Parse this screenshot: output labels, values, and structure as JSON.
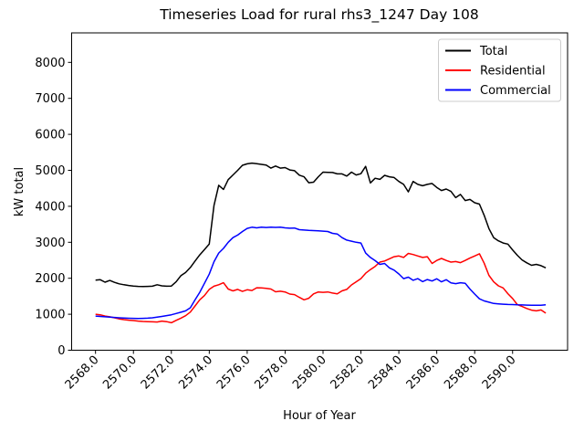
{
  "chart_data": {
    "type": "line",
    "title": "Timeseries Load for rural rhs3_1247  Day 108",
    "xlabel": "Hour of Year",
    "ylabel": "kW total",
    "grid": false,
    "legend_position": "upper right",
    "x_start": 2568.0,
    "x_step": 0.25,
    "n_points": 96,
    "xlim": [
      2566.74,
      2592.9
    ],
    "ylim": [
      0,
      8820
    ],
    "xticks": [
      2568,
      2570,
      2572,
      2574,
      2576,
      2578,
      2580,
      2582,
      2584,
      2586,
      2588,
      2590
    ],
    "xtick_labels": [
      "2568.0",
      "2570.0",
      "2572.0",
      "2574.0",
      "2576.0",
      "2578.0",
      "2580.0",
      "2582.0",
      "2584.0",
      "2586.0",
      "2588.0",
      "2590.0"
    ],
    "yticks": [
      0,
      1000,
      2000,
      3000,
      4000,
      5000,
      6000,
      7000,
      8000
    ],
    "series": [
      {
        "name": "Total",
        "color": "#000000",
        "values": [
          1950,
          1960,
          1890,
          1940,
          1885,
          1845,
          1820,
          1800,
          1785,
          1775,
          1770,
          1775,
          1780,
          1820,
          1790,
          1780,
          1785,
          1900,
          2070,
          2160,
          2300,
          2480,
          2650,
          2800,
          2950,
          4020,
          4585,
          4470,
          4740,
          4870,
          5000,
          5140,
          5180,
          5200,
          5185,
          5165,
          5145,
          5060,
          5120,
          5060,
          5075,
          5010,
          4990,
          4865,
          4820,
          4655,
          4670,
          4820,
          4950,
          4945,
          4940,
          4900,
          4900,
          4840,
          4950,
          4870,
          4905,
          5110,
          4650,
          4780,
          4750,
          4860,
          4820,
          4800,
          4690,
          4610,
          4400,
          4690,
          4610,
          4570,
          4610,
          4635,
          4525,
          4440,
          4480,
          4415,
          4240,
          4330,
          4160,
          4190,
          4100,
          4060,
          3750,
          3380,
          3130,
          3040,
          2980,
          2950,
          2790,
          2640,
          2510,
          2430,
          2360,
          2385,
          2350,
          2290
        ]
      },
      {
        "name": "Residential",
        "color": "#ff0000",
        "values": [
          1000,
          985,
          950,
          930,
          900,
          870,
          850,
          835,
          825,
          810,
          800,
          795,
          790,
          785,
          810,
          795,
          765,
          830,
          890,
          960,
          1060,
          1230,
          1400,
          1520,
          1690,
          1780,
          1820,
          1875,
          1700,
          1650,
          1690,
          1635,
          1680,
          1660,
          1735,
          1730,
          1720,
          1700,
          1625,
          1640,
          1620,
          1560,
          1545,
          1470,
          1400,
          1445,
          1565,
          1620,
          1610,
          1620,
          1590,
          1565,
          1650,
          1690,
          1815,
          1900,
          1990,
          2140,
          2240,
          2330,
          2450,
          2480,
          2540,
          2600,
          2620,
          2580,
          2690,
          2660,
          2620,
          2580,
          2600,
          2410,
          2495,
          2550,
          2495,
          2450,
          2465,
          2435,
          2495,
          2560,
          2620,
          2680,
          2420,
          2080,
          1900,
          1790,
          1730,
          1570,
          1440,
          1270,
          1215,
          1160,
          1115,
          1095,
          1120,
          1030
        ]
      },
      {
        "name": "Commercial",
        "color": "#0000ff",
        "values": [
          950,
          940,
          930,
          920,
          910,
          900,
          893,
          888,
          885,
          882,
          885,
          890,
          900,
          920,
          940,
          962,
          985,
          1020,
          1055,
          1095,
          1180,
          1400,
          1610,
          1860,
          2115,
          2460,
          2700,
          2830,
          3000,
          3130,
          3200,
          3300,
          3385,
          3420,
          3400,
          3420,
          3410,
          3420,
          3415,
          3420,
          3400,
          3390,
          3395,
          3350,
          3340,
          3330,
          3325,
          3320,
          3310,
          3300,
          3250,
          3230,
          3130,
          3060,
          3030,
          3000,
          2980,
          2700,
          2580,
          2490,
          2385,
          2410,
          2290,
          2225,
          2120,
          1990,
          2030,
          1945,
          1990,
          1905,
          1965,
          1925,
          1985,
          1900,
          1960,
          1870,
          1850,
          1875,
          1860,
          1700,
          1560,
          1430,
          1370,
          1335,
          1300,
          1290,
          1280,
          1272,
          1268,
          1262,
          1258,
          1254,
          1252,
          1250,
          1252,
          1262
        ]
      }
    ]
  }
}
